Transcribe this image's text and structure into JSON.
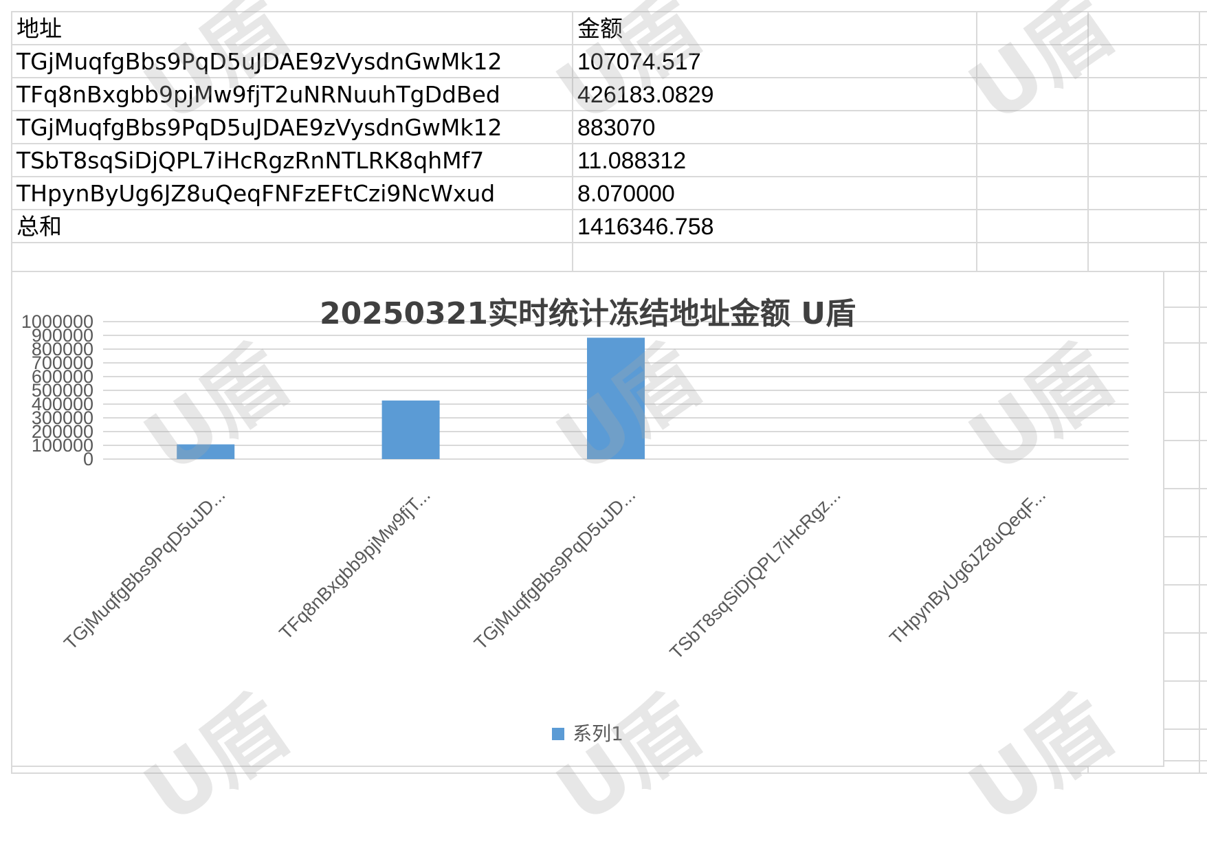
{
  "table": {
    "headers": [
      "地址",
      "金额"
    ],
    "rows": [
      {
        "address": "TGjMuqfgBbs9PqD5uJDAE9zVysdnGwMk12",
        "amount": "107074.517"
      },
      {
        "address": "TFq8nBxgbb9pjMw9fjT2uNRNuuhTgDdBed",
        "amount": "426183.0829"
      },
      {
        "address": "TGjMuqfgBbs9PqD5uJDAE9zVysdnGwMk12",
        "amount": "883070"
      },
      {
        "address": "TSbT8sqSiDjQPL7iHcRgzRnNTLRK8qhMf7",
        "amount": "11.088312"
      },
      {
        "address": "THpynByUg6JZ8uQeqFNFzEFtCzi9NcWxud",
        "amount": "8.070000"
      }
    ],
    "total_label": "总和",
    "total_value": "1416346.758"
  },
  "watermark": "U盾",
  "colors": {
    "bar": "#5b9bd5",
    "grid": "#d9d9d9",
    "text": "#595959"
  },
  "chart_data": {
    "type": "bar",
    "title": "20250321实时统计冻结地址金额 U盾",
    "categories": [
      "TGjMuqfgBbs9PqD5uJD...",
      "TFq8nBxgbb9pjMw9fjT...",
      "TGjMuqfgBbs9PqD5uJD...",
      "TSbT8sqSiDjQPL7iHcRgz...",
      "THpynByUg6JZ8uQeqF..."
    ],
    "series": [
      {
        "name": "系列1",
        "values": [
          107074.517,
          426183.0829,
          883070,
          11.088312,
          8.07
        ]
      }
    ],
    "ylim": [
      0,
      1000000
    ],
    "yticks": [
      "0",
      "100000",
      "200000",
      "300000",
      "400000",
      "500000",
      "600000",
      "700000",
      "800000",
      "900000",
      "1000000"
    ],
    "xlabel": "",
    "ylabel": "",
    "grid": true,
    "legend": "bottom"
  }
}
